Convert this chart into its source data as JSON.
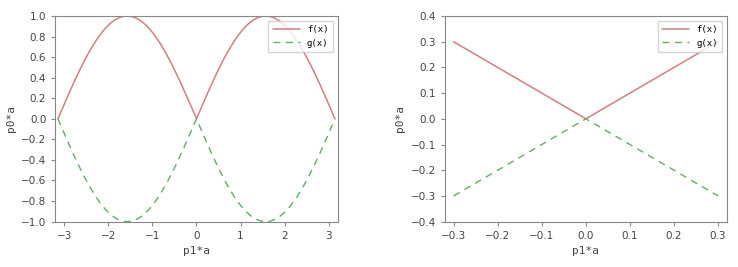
{
  "left": {
    "xlim": [
      -3.2,
      3.2
    ],
    "ylim": [
      -1.0,
      1.0
    ],
    "xticks": [
      -3,
      -2,
      -1,
      0,
      1,
      2,
      3
    ],
    "yticks": [
      -1.0,
      -0.8,
      -0.6,
      -0.4,
      -0.2,
      0.0,
      0.2,
      0.4,
      0.6,
      0.8,
      1.0
    ],
    "xlabel": "p1*a",
    "ylabel": "p0*a",
    "f_label": "f(x)",
    "g_label": "g(x)",
    "f_color": "#d08080",
    "g_color": "#60b060",
    "bg_color": "#ffffff"
  },
  "right": {
    "xlim": [
      -0.32,
      0.32
    ],
    "ylim": [
      -0.4,
      0.4
    ],
    "xticks": [
      -0.3,
      -0.2,
      -0.1,
      0.0,
      0.1,
      0.2,
      0.3
    ],
    "yticks": [
      -0.4,
      -0.3,
      -0.2,
      -0.1,
      0.0,
      0.1,
      0.2,
      0.3,
      0.4
    ],
    "xlabel": "p1*a",
    "ylabel": "p0*a",
    "f_label": "f(x)",
    "g_label": "g(x)",
    "f_color": "#d08080",
    "g_color": "#60b060",
    "bg_color": "#ffffff"
  },
  "fig_bg": "#ffffff"
}
